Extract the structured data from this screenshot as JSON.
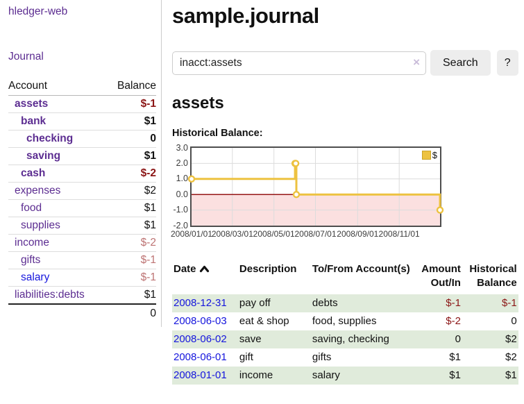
{
  "colors": {
    "link_purple": "#5c2d91",
    "link_blue": "#1515dd",
    "neg_strong": "#8b1515",
    "neg_soft": "#bd7373",
    "row_green": "#e0ebdb",
    "accent_yellow": "#edc240"
  },
  "app": {
    "brand": "hledger-web",
    "nav_journal": "Journal"
  },
  "sidebar": {
    "headers": {
      "account": "Account",
      "balance": "Balance"
    },
    "accounts": [
      {
        "name": "assets",
        "depth": 1,
        "emphasis": true,
        "link_tone": "purple",
        "balance": "$-1",
        "balance_tone": "neg-strong"
      },
      {
        "name": "bank",
        "depth": 2,
        "emphasis": true,
        "link_tone": "purple",
        "balance": "$1",
        "balance_tone": "default"
      },
      {
        "name": "checking",
        "depth": 3,
        "emphasis": true,
        "link_tone": "purple",
        "balance": "0",
        "balance_tone": "default"
      },
      {
        "name": "saving",
        "depth": 3,
        "emphasis": true,
        "link_tone": "purple",
        "balance": "$1",
        "balance_tone": "default"
      },
      {
        "name": "cash",
        "depth": 2,
        "emphasis": true,
        "link_tone": "purple",
        "balance": "$-2",
        "balance_tone": "neg-strong"
      },
      {
        "name": "expenses",
        "depth": 1,
        "emphasis": false,
        "link_tone": "purple",
        "balance": "$2",
        "balance_tone": "default"
      },
      {
        "name": "food",
        "depth": 2,
        "emphasis": false,
        "link_tone": "purple",
        "balance": "$1",
        "balance_tone": "default"
      },
      {
        "name": "supplies",
        "depth": 2,
        "emphasis": false,
        "link_tone": "purple",
        "balance": "$1",
        "balance_tone": "default"
      },
      {
        "name": "income",
        "depth": 1,
        "emphasis": false,
        "link_tone": "purple",
        "balance": "$-2",
        "balance_tone": "neg-soft"
      },
      {
        "name": "gifts",
        "depth": 2,
        "emphasis": false,
        "link_tone": "purple",
        "balance": "$-1",
        "balance_tone": "neg-soft"
      },
      {
        "name": "salary",
        "depth": 2,
        "emphasis": false,
        "link_tone": "blue",
        "balance": "$-1",
        "balance_tone": "neg-soft"
      },
      {
        "name": "liabilities:debts",
        "depth": 1,
        "emphasis": false,
        "link_tone": "purple",
        "balance": "$1",
        "balance_tone": "default"
      }
    ],
    "total": "0"
  },
  "main": {
    "page_title": "sample.journal",
    "search": {
      "value": "inacct:assets",
      "clear_icon": "×",
      "button_label": "Search",
      "help_label": "?"
    },
    "account_heading": "assets",
    "chart_label": "Historical Balance:"
  },
  "chart_data": {
    "type": "line",
    "style": "step",
    "title": "Historical Balance:",
    "x_range": [
      "2008-01-01",
      "2008-12-31"
    ],
    "ylim": [
      -2,
      3
    ],
    "y_ticks": [
      3,
      2,
      1,
      0,
      -1,
      -2
    ],
    "x_ticks": [
      "2008/01/01",
      "2008/03/01",
      "2008/05/01",
      "2008/07/01",
      "2008/09/01",
      "2008/11/01"
    ],
    "series": [
      {
        "name": "$",
        "color": "#edc240",
        "points": [
          [
            "2008-01-01",
            1
          ],
          [
            "2008-06-01",
            2
          ],
          [
            "2008-06-02",
            2
          ],
          [
            "2008-06-03",
            0
          ],
          [
            "2008-12-31",
            -1
          ]
        ]
      }
    ],
    "legend_position": "top-right",
    "grid": true,
    "grid_color": "#dcdcdc",
    "zero_line_color": "#8b0000",
    "negative_region_color": "#fbe0e0",
    "border_color": "#4d4d4d"
  },
  "register": {
    "headers": [
      "Date",
      "Description",
      "To/From Account(s)",
      "Amount Out/In",
      "Historical Balance"
    ],
    "sort": {
      "column": "Date",
      "direction": "asc"
    },
    "rows": [
      {
        "date": "2008-12-31",
        "description": "pay off",
        "accounts": "debts",
        "amount": "$-1",
        "balance": "$-1"
      },
      {
        "date": "2008-06-03",
        "description": "eat & shop",
        "accounts": "food, supplies",
        "amount": "$-2",
        "balance": "0"
      },
      {
        "date": "2008-06-02",
        "description": "save",
        "accounts": "saving, checking",
        "amount": "0",
        "balance": "$2"
      },
      {
        "date": "2008-06-01",
        "description": "gift",
        "accounts": "gifts",
        "amount": "$1",
        "balance": "$2"
      },
      {
        "date": "2008-01-01",
        "description": "income",
        "accounts": "salary",
        "amount": "$1",
        "balance": "$1"
      }
    ]
  }
}
